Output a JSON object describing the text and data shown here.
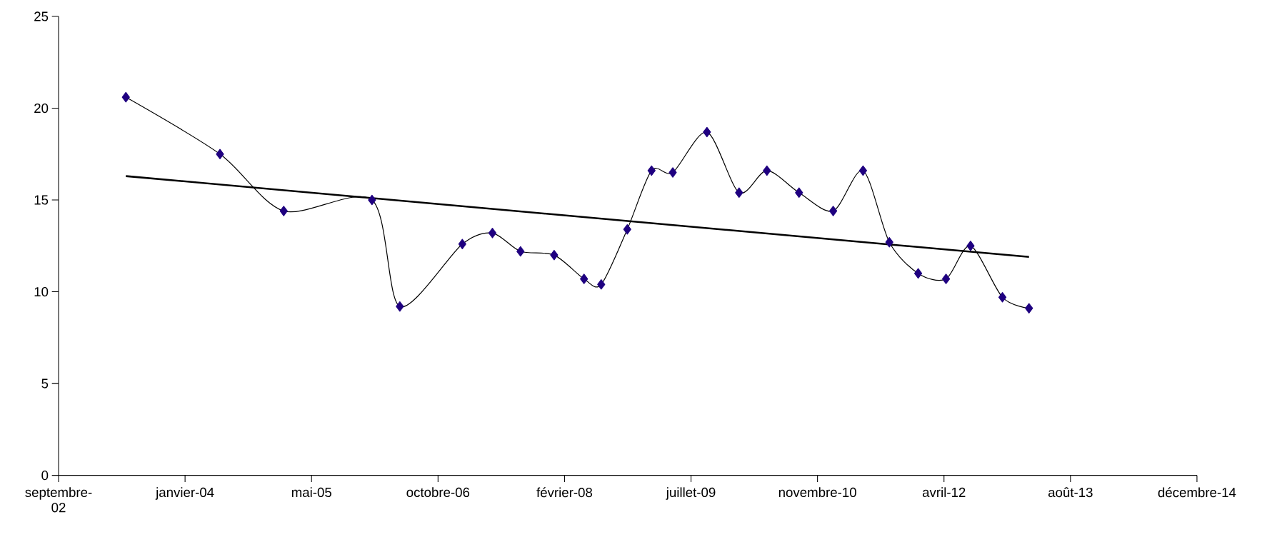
{
  "chart_data": {
    "type": "line",
    "x": [
      "2003-05-25",
      "2004-05-31",
      "2005-02-07",
      "2006-01-22",
      "2006-05-12",
      "2007-01-14",
      "2007-05-13",
      "2007-09-01",
      "2008-01-12",
      "2008-05-09",
      "2008-07-16",
      "2008-10-27",
      "2009-01-31",
      "2009-04-25",
      "2009-09-07",
      "2010-01-12",
      "2010-05-02",
      "2010-09-06",
      "2011-01-19",
      "2011-05-17",
      "2011-08-29",
      "2011-12-21",
      "2012-04-09",
      "2012-07-15",
      "2012-11-18",
      "2013-03-03"
    ],
    "series": [
      {
        "color": "#1f0080",
        "marker": "diamond",
        "values": [
          20.6,
          17.5,
          14.4,
          15.0,
          9.2,
          12.6,
          13.2,
          12.2,
          12.0,
          10.7,
          10.4,
          13.4,
          16.6,
          16.5,
          18.7,
          15.4,
          16.6,
          15.4,
          14.4,
          16.6,
          12.7,
          11.0,
          10.7,
          12.5,
          9.7,
          9.1
        ]
      },
      {
        "type": "line",
        "x": [
          "2003-05-25",
          "2013-03-03"
        ],
        "color": "#000000",
        "marker": "none",
        "values": [
          16.3,
          11.9
        ]
      }
    ],
    "xlim": [
      "2002-09-01",
      "2014-12-27"
    ],
    "xticks": [
      {
        "value": "2002-09-01",
        "label": "septembre-02"
      },
      {
        "value": "2004-01-14",
        "label": "janvier-04"
      },
      {
        "value": "2005-05-28",
        "label": "mai-05"
      },
      {
        "value": "2006-10-10",
        "label": "octobre-06"
      },
      {
        "value": "2008-02-22",
        "label": "février-08"
      },
      {
        "value": "2009-07-06",
        "label": "juillet-09"
      },
      {
        "value": "2010-11-18",
        "label": "novembre-10"
      },
      {
        "value": "2012-04-01",
        "label": "avril-12"
      },
      {
        "value": "2013-08-14",
        "label": "août-13"
      },
      {
        "value": "2014-12-27",
        "label": "décembre-14"
      }
    ],
    "ylim": [
      0,
      25
    ],
    "yticks": [
      0,
      5,
      10,
      15,
      20,
      25
    ]
  }
}
